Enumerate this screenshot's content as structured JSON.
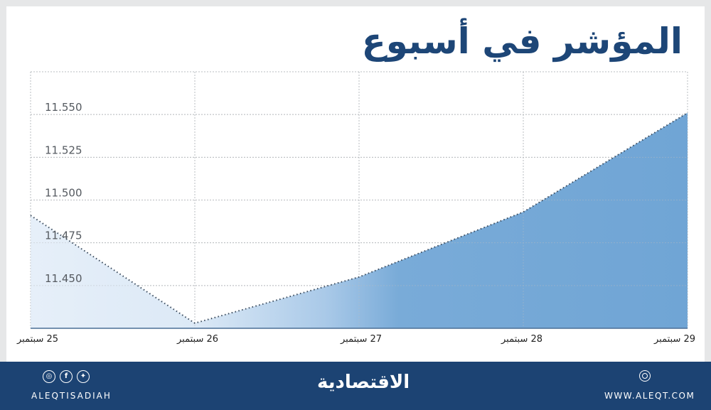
{
  "title": "المؤشر في أسبوع",
  "chart_data": {
    "type": "area",
    "title": "المؤشر في أسبوع",
    "categories": [
      "25 سبتمبر",
      "26 سبتمبر",
      "27 سبتمبر",
      "28 سبتمبر",
      "29 سبتمبر"
    ],
    "values": [
      11.491,
      11.428,
      11.455,
      11.493,
      11.551
    ],
    "xlabel": "",
    "ylabel": "",
    "ylim": [
      11.425,
      11.575
    ],
    "yticks": [
      "11.450",
      "11.475",
      "11.500",
      "11.525",
      "11.550"
    ],
    "grid": true,
    "legend": null,
    "fill_gradient": [
      "#e3edf8",
      "#74a8d6"
    ]
  },
  "xaxis": {
    "labels": [
      "25 سبتمبر",
      "26 سبتمبر",
      "27 سبتمبر",
      "28 سبتمبر",
      "29 سبتمبر"
    ]
  },
  "yaxis": {
    "labels": [
      "11.550",
      "11.525",
      "11.500",
      "11.475",
      "11.450"
    ]
  },
  "footer": {
    "social_icons": [
      "instagram-icon",
      "facebook-icon",
      "twitter-icon"
    ],
    "handle": "ALEQTISADIAH",
    "brand": "الاقتصادية",
    "website_icon": "web-icon",
    "website": "WWW.ALEQT.COM"
  },
  "colors": {
    "title": "#1d4677",
    "footer_bg": "#1c4373",
    "area_light": "#e3edf8",
    "area_dark": "#74a8d6",
    "line": "#3a4a5c"
  }
}
